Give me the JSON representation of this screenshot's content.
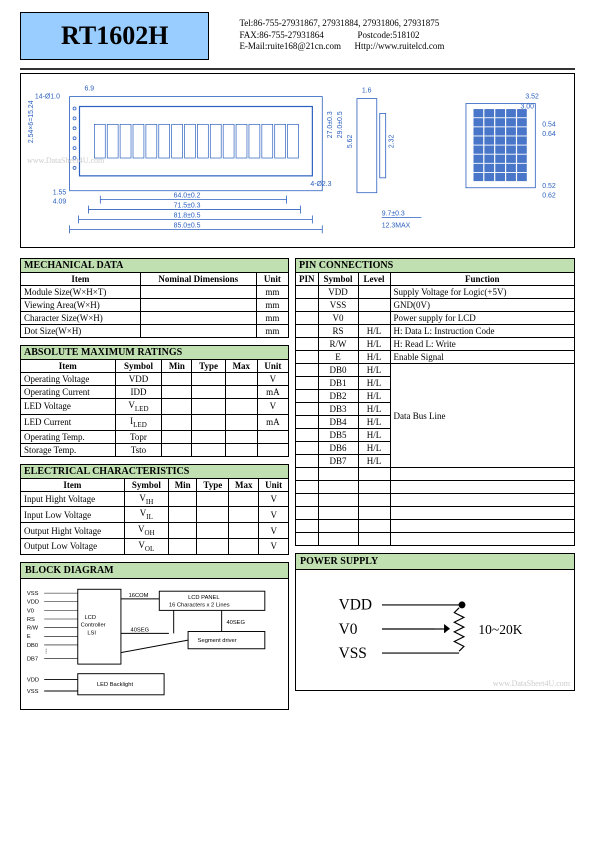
{
  "header": {
    "title": "RT1602H",
    "contact_line1": "Tel:86-755-27931867, 27931884, 27931806, 27931875",
    "contact_line2a": "FAX:86-755-27931864",
    "contact_line2b": "Postcode:518102",
    "contact_line3a": "E-Mail:ruite168@21cn.com",
    "contact_line3b": "Http://www.ruitelcd.com"
  },
  "drawing": {
    "dims": [
      "6.9",
      "14-Ø1.0",
      "2.54×6=15.24",
      "1.55",
      "4.09",
      "64.0±0.2",
      "71.5±0.3",
      "81.8±0.5",
      "85.0±0.5",
      "4-Ø2.3",
      "27.0±0.3",
      "29.0±0.5",
      "1.6",
      "5.62",
      "2.32",
      "9.7±0.3",
      "12.3MAX",
      "3.52",
      "3.00",
      "0.54",
      "0.64",
      "0.52",
      "0.62"
    ],
    "watermark": "www.DataSheet4U.com",
    "color": "#2a5fbf"
  },
  "mechanical": {
    "title": "MECHANICAL  DATA",
    "headers": [
      "Item",
      "Nominal  Dimensions",
      "Unit"
    ],
    "rows": [
      {
        "item": "Module Size(W×H×T)",
        "dim": "",
        "unit": "mm"
      },
      {
        "item": "Viewing  Area(W×H)",
        "dim": "",
        "unit": "mm"
      },
      {
        "item": "Character  Size(W×H)",
        "dim": "",
        "unit": "mm"
      },
      {
        "item": "Dot  Size(W×H)",
        "dim": "",
        "unit": "mm"
      }
    ]
  },
  "absmax": {
    "title": "ABSOLUTE  MAXIMUM  RATINGS",
    "headers": [
      "Item",
      "Symbol",
      "Min",
      "Type",
      "Max",
      "Unit"
    ],
    "rows": [
      {
        "item": "Operating  Voltage",
        "sym": "VDD",
        "min": "",
        "typ": "",
        "max": "",
        "unit": "V"
      },
      {
        "item": "Operating  Current",
        "sym": "IDD",
        "min": "",
        "typ": "",
        "max": "",
        "unit": "mA"
      },
      {
        "item": "LED  Voltage",
        "sym": "V<sub>LED</sub>",
        "min": "",
        "typ": "",
        "max": "",
        "unit": "V"
      },
      {
        "item": "LED  Current",
        "sym": "I<sub>LED</sub>",
        "min": "",
        "typ": "",
        "max": "",
        "unit": "mA"
      },
      {
        "item": "Operating  Temp.",
        "sym": "Topr",
        "min": "",
        "typ": "",
        "max": "",
        "unit": ""
      },
      {
        "item": "Storage  Temp.",
        "sym": "Tsto",
        "min": "",
        "typ": "",
        "max": "",
        "unit": ""
      }
    ]
  },
  "electrical": {
    "title": "ELECTRICAL  CHARACTERISTICS",
    "headers": [
      "Item",
      "Symbol",
      "Min",
      "Type",
      "Max",
      "Unit"
    ],
    "rows": [
      {
        "item": "Input Hight Voltage",
        "sym": "V<sub>IH</sub>",
        "min": "",
        "typ": "",
        "max": "",
        "unit": "V"
      },
      {
        "item": "Input Low  Voltage",
        "sym": "V<sub>IL</sub>",
        "min": "",
        "typ": "",
        "max": "",
        "unit": "V"
      },
      {
        "item": "Output Hight Voltage",
        "sym": "V<sub>OH</sub>",
        "min": "",
        "typ": "",
        "max": "",
        "unit": "V"
      },
      {
        "item": "Output Low Voltage",
        "sym": "V<sub>OL</sub>",
        "min": "",
        "typ": "",
        "max": "",
        "unit": "V"
      }
    ]
  },
  "pins": {
    "title": "PIN  CONNECTIONS",
    "headers": [
      "PIN",
      "Symbol",
      "Level",
      "Function"
    ],
    "rows": [
      {
        "pin": "",
        "sym": "VDD",
        "lvl": "",
        "fn": "Supply Voltage for Logic(+5V)"
      },
      {
        "pin": "",
        "sym": "VSS",
        "lvl": "",
        "fn": "GND(0V)"
      },
      {
        "pin": "",
        "sym": "V0",
        "lvl": "",
        "fn": "Power supply for LCD"
      },
      {
        "pin": "",
        "sym": "RS",
        "lvl": "H/L",
        "fn": "H: Data     L: Instruction Code"
      },
      {
        "pin": "",
        "sym": "R/W",
        "lvl": "H/L",
        "fn": "H: Read    L: Write"
      },
      {
        "pin": "",
        "sym": "E",
        "lvl": "H/L",
        "fn": "Enable Signal"
      },
      {
        "pin": "",
        "sym": "DB0",
        "lvl": "H/L",
        "fn": ""
      },
      {
        "pin": "",
        "sym": "DB1",
        "lvl": "H/L",
        "fn": ""
      },
      {
        "pin": "",
        "sym": "DB2",
        "lvl": "H/L",
        "fn": ""
      },
      {
        "pin": "",
        "sym": "DB3",
        "lvl": "H/L",
        "fn": ""
      },
      {
        "pin": "",
        "sym": "DB4",
        "lvl": "H/L",
        "fn": ""
      },
      {
        "pin": "",
        "sym": "DB5",
        "lvl": "H/L",
        "fn": ""
      },
      {
        "pin": "",
        "sym": "DB6",
        "lvl": "H/L",
        "fn": ""
      },
      {
        "pin": "",
        "sym": "DB7",
        "lvl": "H/L",
        "fn": ""
      },
      {
        "pin": "",
        "sym": "",
        "lvl": "",
        "fn": ""
      },
      {
        "pin": "",
        "sym": "",
        "lvl": "",
        "fn": ""
      },
      {
        "pin": "",
        "sym": "",
        "lvl": "",
        "fn": ""
      },
      {
        "pin": "",
        "sym": "",
        "lvl": "",
        "fn": ""
      },
      {
        "pin": "",
        "sym": "",
        "lvl": "",
        "fn": ""
      },
      {
        "pin": "",
        "sym": "",
        "lvl": "",
        "fn": ""
      }
    ],
    "databus_label": "Data Bus Line"
  },
  "block_diagram": {
    "title": "BLOCK  DIAGRAM",
    "signals": [
      "VSS",
      "VDD",
      "V0",
      "RS",
      "R/W",
      "E",
      "DB0",
      "DB7"
    ],
    "backlight_signals": [
      "VDD",
      "VSS"
    ],
    "lcd_controller": "LCD\nController\nLSI",
    "lcd_panel": "LCD PANEL\n16 Characters x 2 Lines",
    "segment_driver": "Segment driver",
    "led_backlight": "LED Backlight",
    "com": "16COM",
    "seg1": "40SEG",
    "seg2": "40SEG"
  },
  "power_supply": {
    "title": "POWER  SUPPLY",
    "vdd": "VDD",
    "v0": "V0",
    "vss": "VSS",
    "pot": "10~20K",
    "watermark": "www.DataSheet4U.com"
  },
  "colors": {
    "header_bg": "#99ccff",
    "section_bg": "#c1e0b2",
    "drawing_line": "#2a5fbf",
    "border": "#000000"
  }
}
